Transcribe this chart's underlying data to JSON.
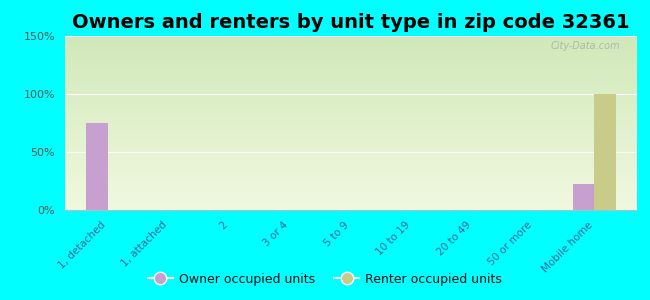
{
  "title": "Owners and renters by unit type in zip code 32361",
  "categories": [
    "1, detached",
    "1, attached",
    "2",
    "3 or 4",
    "5 to 9",
    "10 to 19",
    "20 to 49",
    "50 or more",
    "Mobile home"
  ],
  "owner_values": [
    75,
    0,
    0,
    0,
    0,
    0,
    0,
    0,
    22
  ],
  "renter_values": [
    0,
    0,
    0,
    0,
    0,
    0,
    0,
    0,
    100
  ],
  "owner_color": "#c8a0d0",
  "renter_color": "#c8cc88",
  "background_color": "#00ffff",
  "grad_top": "#d0e8b8",
  "grad_bottom": "#f0f8e0",
  "ylim": [
    0,
    150
  ],
  "yticks": [
    0,
    50,
    100,
    150
  ],
  "ytick_labels": [
    "0%",
    "50%",
    "100%",
    "150%"
  ],
  "title_fontsize": 14,
  "bar_width": 0.35,
  "watermark": "City-Data.com"
}
